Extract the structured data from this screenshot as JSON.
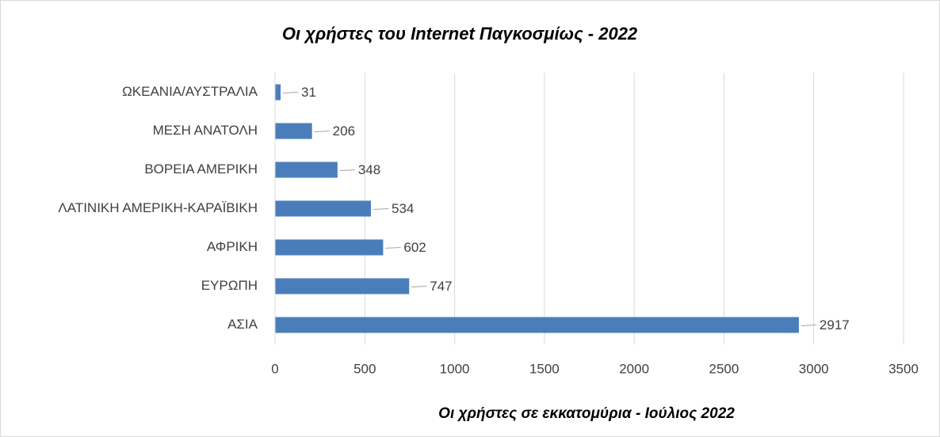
{
  "chart_data": {
    "type": "bar",
    "orientation": "horizontal",
    "title": "Οι χρήστες του Internet Παγκοσμίως - 2022",
    "x_label": "Οι χρήστες σε εκκατομύρια - Ιούλιος 2022",
    "categories": [
      "ΩΚΕΑΝΙΑ/ΑΥΣΤΡΑΛΙΑ",
      "ΜΕΣΗ ΑΝΑΤΟΛΗ",
      "ΒΟΡΕΙΑ ΑΜΕΡΙΚΗ",
      "ΛΑΤΙΝΙΚΗ ΑΜΕΡΙΚΗ-ΚΑΡΑΪΒΙΚΗ",
      "ΑΦΡΙΚΗ",
      "ΕΥΡΩΠΗ",
      "ΑΣΙΑ"
    ],
    "values": [
      31,
      206,
      348,
      534,
      602,
      747,
      2917
    ],
    "color": "#4a7ebb",
    "xlim": [
      0,
      3500
    ],
    "xticks": [
      0,
      500,
      1000,
      1500,
      2000,
      2500,
      3000,
      3500
    ],
    "grid": true
  }
}
